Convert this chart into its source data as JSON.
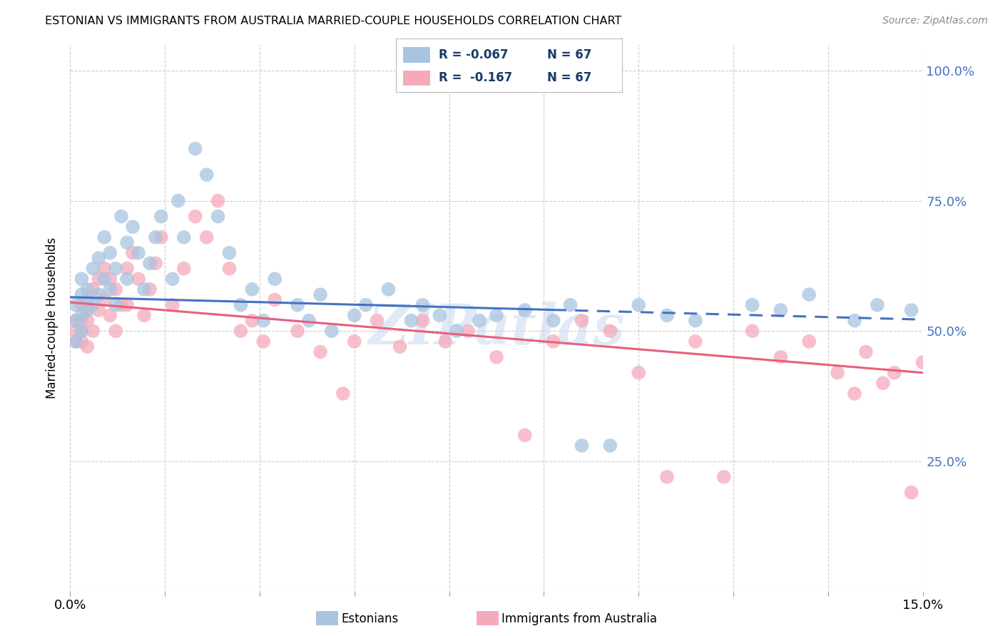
{
  "title": "ESTONIAN VS IMMIGRANTS FROM AUSTRALIA MARRIED-COUPLE HOUSEHOLDS CORRELATION CHART",
  "source": "Source: ZipAtlas.com",
  "ylabel": "Married-couple Households",
  "legend_r_blue": "R = -0.067",
  "legend_n_blue": "N = 67",
  "legend_r_pink": "R =  -0.167",
  "legend_n_pink": "N = 67",
  "legend_label_blue": "Estonians",
  "legend_label_pink": "Immigrants from Australia",
  "blue_color": "#A8C4E0",
  "pink_color": "#F5AABB",
  "blue_line_color": "#4472C4",
  "pink_line_color": "#E8607A",
  "watermark": "ZIPatlas",
  "xmin": 0.0,
  "xmax": 0.15,
  "ymin": 0.0,
  "ymax": 1.05,
  "blue_x": [
    0.001,
    0.001,
    0.001,
    0.002,
    0.002,
    0.002,
    0.002,
    0.003,
    0.003,
    0.003,
    0.004,
    0.004,
    0.005,
    0.005,
    0.006,
    0.006,
    0.007,
    0.007,
    0.008,
    0.008,
    0.009,
    0.01,
    0.01,
    0.011,
    0.012,
    0.013,
    0.014,
    0.015,
    0.016,
    0.018,
    0.019,
    0.02,
    0.022,
    0.024,
    0.026,
    0.028,
    0.03,
    0.032,
    0.034,
    0.036,
    0.04,
    0.042,
    0.044,
    0.046,
    0.05,
    0.052,
    0.056,
    0.06,
    0.062,
    0.065,
    0.068,
    0.072,
    0.075,
    0.08,
    0.085,
    0.088,
    0.09,
    0.095,
    0.1,
    0.105,
    0.11,
    0.12,
    0.125,
    0.13,
    0.138,
    0.142,
    0.148
  ],
  "blue_y": [
    0.52,
    0.55,
    0.48,
    0.57,
    0.6,
    0.53,
    0.5,
    0.56,
    0.54,
    0.58,
    0.62,
    0.55,
    0.64,
    0.57,
    0.68,
    0.6,
    0.65,
    0.58,
    0.62,
    0.55,
    0.72,
    0.67,
    0.6,
    0.7,
    0.65,
    0.58,
    0.63,
    0.68,
    0.72,
    0.6,
    0.75,
    0.68,
    0.85,
    0.8,
    0.72,
    0.65,
    0.55,
    0.58,
    0.52,
    0.6,
    0.55,
    0.52,
    0.57,
    0.5,
    0.53,
    0.55,
    0.58,
    0.52,
    0.55,
    0.53,
    0.5,
    0.52,
    0.53,
    0.54,
    0.52,
    0.55,
    0.28,
    0.28,
    0.55,
    0.53,
    0.52,
    0.55,
    0.54,
    0.57,
    0.52,
    0.55,
    0.54
  ],
  "pink_x": [
    0.001,
    0.001,
    0.001,
    0.002,
    0.002,
    0.002,
    0.002,
    0.003,
    0.003,
    0.003,
    0.004,
    0.004,
    0.005,
    0.005,
    0.006,
    0.006,
    0.007,
    0.007,
    0.008,
    0.008,
    0.009,
    0.01,
    0.01,
    0.011,
    0.012,
    0.013,
    0.014,
    0.015,
    0.016,
    0.018,
    0.02,
    0.022,
    0.024,
    0.026,
    0.028,
    0.03,
    0.032,
    0.034,
    0.036,
    0.04,
    0.044,
    0.048,
    0.05,
    0.054,
    0.058,
    0.062,
    0.066,
    0.07,
    0.075,
    0.08,
    0.085,
    0.09,
    0.095,
    0.1,
    0.105,
    0.11,
    0.115,
    0.12,
    0.125,
    0.13,
    0.135,
    0.138,
    0.14,
    0.143,
    0.145,
    0.148,
    0.15
  ],
  "pink_y": [
    0.5,
    0.48,
    0.52,
    0.55,
    0.52,
    0.5,
    0.48,
    0.52,
    0.47,
    0.54,
    0.58,
    0.5,
    0.6,
    0.54,
    0.62,
    0.56,
    0.6,
    0.53,
    0.58,
    0.5,
    0.55,
    0.62,
    0.55,
    0.65,
    0.6,
    0.53,
    0.58,
    0.63,
    0.68,
    0.55,
    0.62,
    0.72,
    0.68,
    0.75,
    0.62,
    0.5,
    0.52,
    0.48,
    0.56,
    0.5,
    0.46,
    0.38,
    0.48,
    0.52,
    0.47,
    0.52,
    0.48,
    0.5,
    0.45,
    0.3,
    0.48,
    0.52,
    0.5,
    0.42,
    0.22,
    0.48,
    0.22,
    0.5,
    0.45,
    0.48,
    0.42,
    0.38,
    0.46,
    0.4,
    0.42,
    0.19,
    0.44
  ]
}
